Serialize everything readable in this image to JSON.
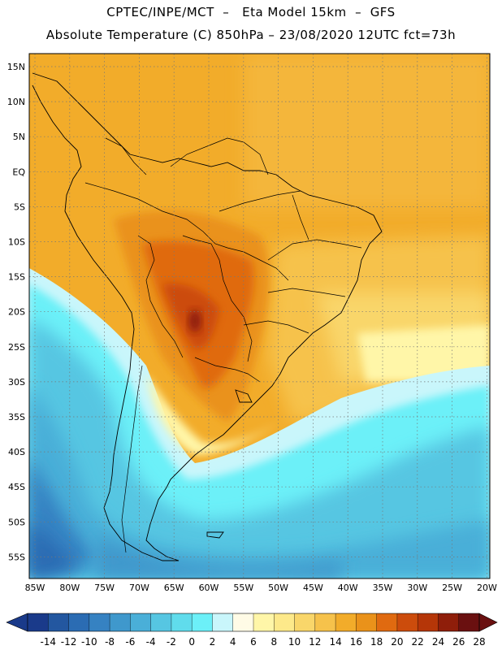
{
  "header": {
    "line1": "CPTEC/INPE/MCT  –   Eta Model 15km  –  GFS",
    "line2": "Absolute Temperature (C) 850hPa – 23/08/2020 12UTC fct=73h"
  },
  "map": {
    "lat_labels": [
      "15N",
      "10N",
      "5N",
      "EQ",
      "5S",
      "10S",
      "15S",
      "20S",
      "25S",
      "30S",
      "35S",
      "40S",
      "45S",
      "50S",
      "55S"
    ],
    "lon_labels": [
      "85W",
      "80W",
      "75W",
      "70W",
      "65W",
      "60W",
      "55W",
      "50W",
      "45W",
      "40W",
      "35W",
      "30W",
      "25W",
      "20W"
    ]
  },
  "colorbar": {
    "labels": [
      "-14",
      "-12",
      "-10",
      "-8",
      "-6",
      "-4",
      "-2",
      "0",
      "2",
      "4",
      "6",
      "8",
      "10",
      "12",
      "14",
      "16",
      "18",
      "20",
      "22",
      "24",
      "26",
      "28"
    ],
    "colors": [
      "#1a3a8a",
      "#2357a0",
      "#2b6cb3",
      "#3682c2",
      "#3f98cc",
      "#4aafd8",
      "#56c6e2",
      "#60dcec",
      "#6cf0f8",
      "#c9f6fb",
      "#fffbe6",
      "#fff6a8",
      "#fde98a",
      "#f9d66a",
      "#f6c24b",
      "#f2ac2a",
      "#ea921a",
      "#e06a10",
      "#cc4c0c",
      "#b53608",
      "#8f1e0a",
      "#6a1010"
    ]
  }
}
